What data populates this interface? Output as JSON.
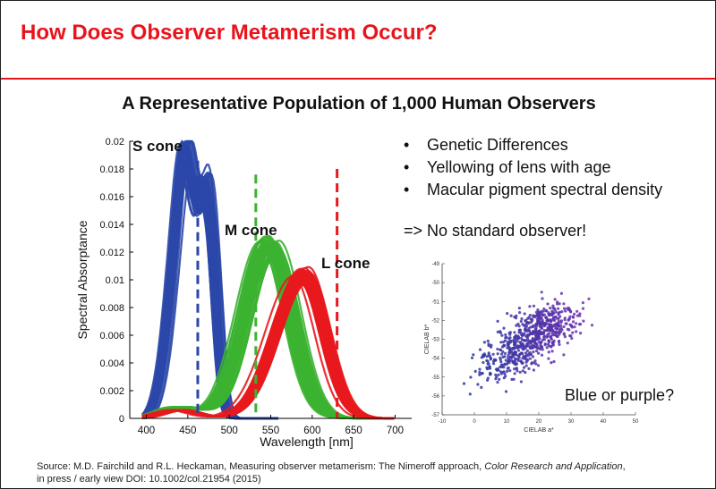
{
  "slide": {
    "title": "How Does Observer Metamerism Occur?",
    "subtitle": "A Representative Population of 1,000 Human Observers",
    "bullets": [
      "Genetic Differences",
      "Yellowing of lens with age",
      "Macular pigment spectral density"
    ],
    "bullet_glyph": "•",
    "conclusion": "=> No standard observer!",
    "scatter_caption": "Blue or purple?",
    "citation_line1_pre": "Source: M.D. Fairchild and R.L. Heckaman, Measuring observer metamerism: The Nimeroff approach, ",
    "citation_journal": "Color Research and Application",
    "citation_line1_post": ",",
    "citation_line2": "in press / early view DOI: 10.1002/col.21954 (2015)",
    "colors": {
      "title": "#e8141c",
      "s_cone": "#2a47a8",
      "m_cone": "#3cb231",
      "l_cone": "#e8191e"
    }
  },
  "chart_data": [
    {
      "type": "line",
      "xlabel": "Wavelength [nm]",
      "ylabel": "Spectral Absorptance",
      "xlim": [
        380,
        720
      ],
      "ylim": [
        0,
        0.02
      ],
      "x_ticks": [
        400,
        450,
        500,
        550,
        600,
        650,
        700
      ],
      "y_ticks": [
        0,
        0.002,
        0.004,
        0.006,
        0.008,
        0.01,
        0.012,
        0.014,
        0.016,
        0.018,
        0.02
      ],
      "y_tick_labels": [
        "0",
        "0.002",
        "0.004",
        "0.006",
        "0.008",
        "0.01",
        "0.012",
        "0.014",
        "0.016",
        "0.018",
        "0.02"
      ],
      "series": [
        {
          "name": "S cone",
          "color": "#2a47a8",
          "peak_wavelength": 447,
          "peak_value": 0.0185,
          "reference_line": 462
        },
        {
          "name": "M cone",
          "color": "#3cb231",
          "peak_wavelength": 545,
          "peak_value": 0.0125,
          "reference_line": 532
        },
        {
          "name": "L cone",
          "color": "#e8191e",
          "peak_wavelength": 590,
          "peak_value": 0.0103,
          "reference_line": 630
        }
      ],
      "grid": false,
      "legend": "labels on curves"
    },
    {
      "type": "scatter",
      "xlabel": "CIELAB a*",
      "ylabel": "CIELAB b*",
      "xlim": [
        -10,
        50
      ],
      "ylim": [
        -57,
        -49
      ],
      "x_ticks": [
        -10,
        0,
        10,
        20,
        30,
        40,
        50
      ],
      "y_ticks": [
        -57,
        -56,
        -55,
        -54,
        -53,
        -52,
        -51,
        -50,
        -49
      ],
      "cluster_center": [
        26,
        -51.8
      ],
      "color_range": [
        "#1f3a9e",
        "#7a2fb2"
      ],
      "point_count": 1000
    }
  ]
}
